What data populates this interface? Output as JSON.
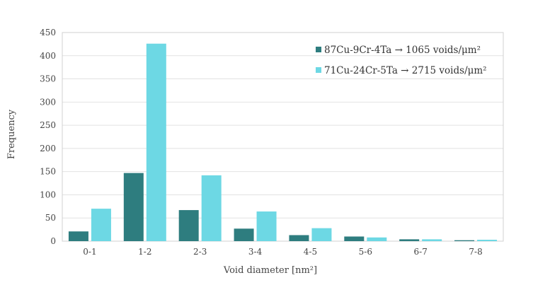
{
  "chart_data": {
    "type": "bar",
    "categories": [
      "0-1",
      "1-2",
      "2-3",
      "3-4",
      "4-5",
      "5-6",
      "6-7",
      "7-8"
    ],
    "series": [
      {
        "name": "87Cu-9Cr-4Ta  → 1065 voids/μm²",
        "color": "#2e7d7f",
        "values": [
          21,
          147,
          67,
          27,
          13,
          10,
          4,
          2
        ]
      },
      {
        "name": "71Cu-24Cr-5Ta → 2715 voids/μm²",
        "color": "#6dd8e4",
        "values": [
          70,
          426,
          142,
          64,
          28,
          8,
          4,
          3
        ]
      }
    ],
    "xlabel": "Void diameter [nm²]",
    "ylabel": "Frequency",
    "ylim": [
      0,
      450
    ],
    "yticks": [
      0,
      50,
      100,
      150,
      200,
      250,
      300,
      350,
      400,
      450
    ],
    "grid": true,
    "legend_position": "top-right"
  }
}
